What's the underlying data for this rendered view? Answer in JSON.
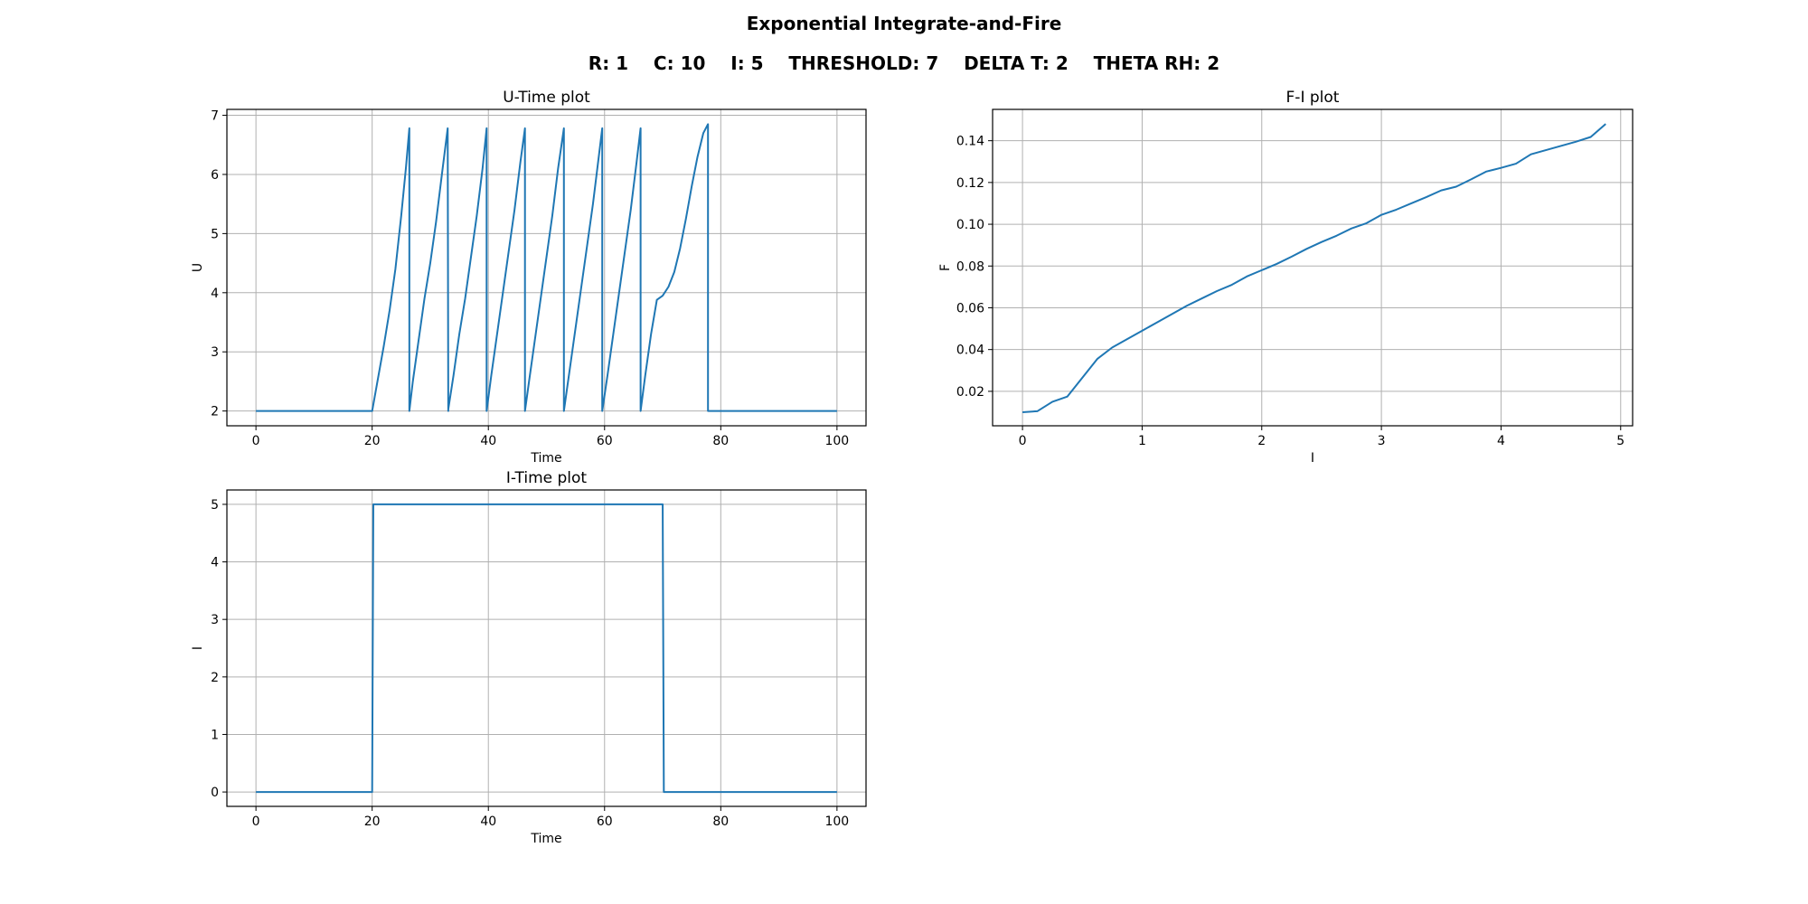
{
  "figure": {
    "title": "Exponential Integrate-and-Fire",
    "params_text": "R: 1    C: 10    I: 5    THRESHOLD: 7    DELTA T: 2    THETA RH: 2"
  },
  "colors": {
    "line": "#1f77b4",
    "grid": "#b0b0b0",
    "axis": "#000000"
  },
  "chart_data": [
    {
      "id": "u_time",
      "type": "line",
      "title": "U-Time plot",
      "xlabel": "Time",
      "ylabel": "U",
      "xlim": [
        -5,
        105
      ],
      "ylim": [
        1.75,
        7.1
      ],
      "xticks": [
        0,
        20,
        40,
        60,
        80,
        100
      ],
      "yticks": [
        2,
        3,
        4,
        5,
        6,
        7
      ],
      "grid": true,
      "series": [
        {
          "x": [
            0,
            20,
            21,
            22,
            23,
            24,
            25,
            25.8,
            26.4,
            26.4,
            27,
            28,
            29,
            30,
            31,
            32,
            33,
            33.1,
            33.1,
            34,
            35,
            36,
            37,
            38,
            39,
            39.7,
            39.7,
            40.5,
            41.5,
            42.5,
            43.5,
            44.5,
            45.5,
            46.3,
            46.3,
            47,
            48,
            49,
            50,
            51,
            52,
            53,
            53,
            54,
            55,
            56,
            57,
            58,
            59,
            59.6,
            59.6,
            60.5,
            61.5,
            62.5,
            63.5,
            64.5,
            65.5,
            66.2,
            66.2,
            67,
            68,
            69,
            70,
            71,
            72,
            73,
            74,
            75,
            76,
            77,
            77.8,
            77.8,
            100
          ],
          "y": [
            2,
            2,
            2.55,
            3.1,
            3.7,
            4.4,
            5.3,
            6.1,
            6.78,
            2,
            2.5,
            3.2,
            3.9,
            4.5,
            5.2,
            6,
            6.78,
            2,
            2.03,
            2.6,
            3.3,
            3.9,
            4.6,
            5.3,
            6.1,
            6.78,
            2,
            2.6,
            3.3,
            4,
            4.7,
            5.4,
            6.2,
            6.78,
            2,
            2.5,
            3.2,
            3.9,
            4.6,
            5.3,
            6.1,
            6.78,
            2,
            2.7,
            3.4,
            4.1,
            4.8,
            5.5,
            6.3,
            6.78,
            2,
            2.6,
            3.3,
            4,
            4.7,
            5.4,
            6.2,
            6.78,
            2,
            2.6,
            3.3,
            3.88,
            3.95,
            4.1,
            4.35,
            4.75,
            5.25,
            5.8,
            6.3,
            6.7,
            6.85,
            2,
            2
          ]
        }
      ]
    },
    {
      "id": "f_i",
      "type": "line",
      "title": "F-I plot",
      "xlabel": "I",
      "ylabel": "F",
      "xlim": [
        -0.25,
        5.1
      ],
      "ylim": [
        0.0035,
        0.155
      ],
      "xticks": [
        0,
        1,
        2,
        3,
        4,
        5
      ],
      "yticks": [
        0.02,
        0.04,
        0.06,
        0.08,
        0.1,
        0.12,
        0.14
      ],
      "ytick_labels": [
        "0.02",
        "0.04",
        "0.06",
        "0.08",
        "0.10",
        "0.12",
        "0.14"
      ],
      "grid": true,
      "series": [
        {
          "x": [
            0,
            0.125,
            0.25,
            0.375,
            0.5,
            0.625,
            0.75,
            0.875,
            1,
            1.125,
            1.25,
            1.375,
            1.5,
            1.625,
            1.75,
            1.875,
            2,
            2.125,
            2.25,
            2.375,
            2.5,
            2.625,
            2.75,
            2.875,
            3,
            3.125,
            3.25,
            3.375,
            3.5,
            3.625,
            3.75,
            3.875,
            4,
            4.125,
            4.25,
            4.375,
            4.5,
            4.625,
            4.75,
            4.875
          ],
          "y": [
            0.01,
            0.0105,
            0.015,
            0.0175,
            0.0265,
            0.0355,
            0.041,
            0.045,
            0.049,
            0.053,
            0.057,
            0.061,
            0.0645,
            0.068,
            0.071,
            0.075,
            0.078,
            0.081,
            0.0845,
            0.0882,
            0.0915,
            0.0945,
            0.098,
            0.1005,
            0.1045,
            0.107,
            0.11,
            0.113,
            0.1162,
            0.118,
            0.1215,
            0.1252,
            0.127,
            0.129,
            0.1335,
            0.1355,
            0.1375,
            0.1395,
            0.1418,
            0.148
          ]
        }
      ]
    },
    {
      "id": "i_time",
      "type": "line",
      "title": "I-Time plot",
      "xlabel": "Time",
      "ylabel": "I",
      "xlim": [
        -5,
        105
      ],
      "ylim": [
        -0.25,
        5.25
      ],
      "xticks": [
        0,
        20,
        40,
        60,
        80,
        100
      ],
      "yticks": [
        0,
        1,
        2,
        3,
        4,
        5
      ],
      "grid": true,
      "series": [
        {
          "x": [
            0,
            20,
            20.2,
            70,
            70.2,
            100
          ],
          "y": [
            0,
            0,
            5,
            5,
            0,
            0
          ]
        }
      ]
    }
  ]
}
